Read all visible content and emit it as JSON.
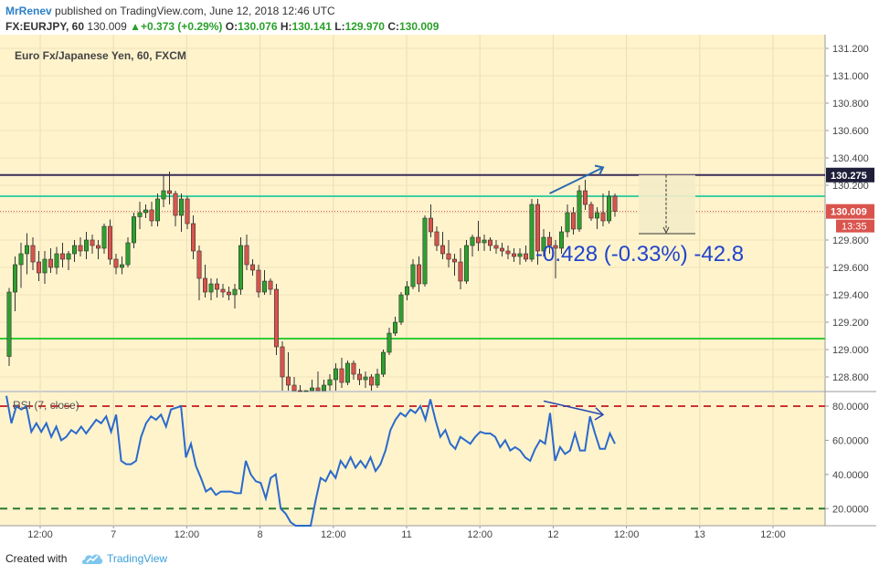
{
  "header": {
    "author": "MrRenev",
    "published_text": "published on TradingView.com, June 12, 2018 12:46 UTC",
    "symbol": "FX:EURJPY, 60",
    "last": "130.009",
    "change": "+0.373 (+0.29%)",
    "o_label": "O:",
    "o_value": "130.076",
    "h_label": "H:",
    "h_value": "130.141",
    "l_label": "L:",
    "l_value": "129.970",
    "c_label": "C:",
    "c_value": "130.009"
  },
  "footer": {
    "created_with": "Created with",
    "brand": "TradingView"
  },
  "colors": {
    "plot_bg": "#fff3cc",
    "bull": "#2ea02e",
    "bear": "#d9544d",
    "resistance": "#3b2d5a",
    "support_green": "#33cc33",
    "teal_line": "#3fcfa0",
    "rsi": "#2a6acc",
    "rsi_bands": "#cc3333",
    "rsi_low_band": "#2a7a2a",
    "measure_text": "#2244cc",
    "arrow": "#2a6ab0"
  },
  "chart_data": [
    {
      "type": "candlestick",
      "title": "Euro Fx/Japanese Yen, 60, FXCM",
      "ylim": [
        128.7,
        131.3
      ],
      "y_ticks": [
        "131.200",
        "131.000",
        "130.800",
        "130.600",
        "130.400",
        "130.200",
        "130.000",
        "129.800",
        "129.600",
        "129.400",
        "129.200",
        "129.000",
        "128.800"
      ],
      "x_ticks": [
        "12:00",
        "7",
        "12:00",
        "8",
        "12:00",
        "11",
        "12:00",
        "12",
        "12:00",
        "13",
        "12:00"
      ],
      "price_labels": {
        "resistance": "130.275",
        "last": "130.009",
        "countdown": "13:35"
      },
      "horizontal_levels": {
        "resistance": 130.275,
        "teal": 130.12,
        "support": 129.08,
        "last": 130.009
      },
      "measurement": {
        "text": "-0.428 (-0.33%) -42.8",
        "from": 130.275,
        "to": 129.847
      },
      "candles": [
        {
          "o": 128.95,
          "h": 129.45,
          "l": 128.88,
          "c": 129.42
        },
        {
          "o": 129.42,
          "h": 129.68,
          "l": 129.28,
          "c": 129.62
        },
        {
          "o": 129.62,
          "h": 129.78,
          "l": 129.45,
          "c": 129.7
        },
        {
          "o": 129.7,
          "h": 129.85,
          "l": 129.55,
          "c": 129.76
        },
        {
          "o": 129.76,
          "h": 129.82,
          "l": 129.58,
          "c": 129.64
        },
        {
          "o": 129.64,
          "h": 129.72,
          "l": 129.5,
          "c": 129.56
        },
        {
          "o": 129.56,
          "h": 129.72,
          "l": 129.48,
          "c": 129.66
        },
        {
          "o": 129.66,
          "h": 129.74,
          "l": 129.56,
          "c": 129.6
        },
        {
          "o": 129.6,
          "h": 129.75,
          "l": 129.55,
          "c": 129.7
        },
        {
          "o": 129.7,
          "h": 129.78,
          "l": 129.6,
          "c": 129.66
        },
        {
          "o": 129.66,
          "h": 129.72,
          "l": 129.58,
          "c": 129.7
        },
        {
          "o": 129.7,
          "h": 129.8,
          "l": 129.64,
          "c": 129.76
        },
        {
          "o": 129.76,
          "h": 129.82,
          "l": 129.68,
          "c": 129.72
        },
        {
          "o": 129.72,
          "h": 129.86,
          "l": 129.66,
          "c": 129.8
        },
        {
          "o": 129.8,
          "h": 129.84,
          "l": 129.7,
          "c": 129.76
        },
        {
          "o": 129.76,
          "h": 129.8,
          "l": 129.66,
          "c": 129.74
        },
        {
          "o": 129.74,
          "h": 129.92,
          "l": 129.7,
          "c": 129.9
        },
        {
          "o": 129.9,
          "h": 129.95,
          "l": 129.62,
          "c": 129.66
        },
        {
          "o": 129.66,
          "h": 129.7,
          "l": 129.55,
          "c": 129.6
        },
        {
          "o": 129.6,
          "h": 129.68,
          "l": 129.55,
          "c": 129.62
        },
        {
          "o": 129.62,
          "h": 129.82,
          "l": 129.6,
          "c": 129.78
        },
        {
          "o": 129.78,
          "h": 130.0,
          "l": 129.74,
          "c": 129.97
        },
        {
          "o": 129.97,
          "h": 130.08,
          "l": 129.88,
          "c": 130.0
        },
        {
          "o": 130.0,
          "h": 130.06,
          "l": 129.96,
          "c": 130.02
        },
        {
          "o": 130.02,
          "h": 130.08,
          "l": 129.9,
          "c": 129.94
        },
        {
          "o": 129.94,
          "h": 130.14,
          "l": 129.9,
          "c": 130.1
        },
        {
          "o": 130.1,
          "h": 130.28,
          "l": 130.04,
          "c": 130.16
        },
        {
          "o": 130.16,
          "h": 130.3,
          "l": 130.06,
          "c": 130.14
        },
        {
          "o": 130.14,
          "h": 130.16,
          "l": 129.9,
          "c": 129.98
        },
        {
          "o": 129.98,
          "h": 130.14,
          "l": 129.86,
          "c": 130.1
        },
        {
          "o": 130.1,
          "h": 130.12,
          "l": 129.88,
          "c": 129.92
        },
        {
          "o": 129.92,
          "h": 129.98,
          "l": 129.66,
          "c": 129.72
        },
        {
          "o": 129.72,
          "h": 129.76,
          "l": 129.36,
          "c": 129.52
        },
        {
          "o": 129.52,
          "h": 129.62,
          "l": 129.38,
          "c": 129.42
        },
        {
          "o": 129.42,
          "h": 129.52,
          "l": 129.36,
          "c": 129.48
        },
        {
          "o": 129.48,
          "h": 129.52,
          "l": 129.38,
          "c": 129.44
        },
        {
          "o": 129.44,
          "h": 129.48,
          "l": 129.38,
          "c": 129.42
        },
        {
          "o": 129.42,
          "h": 129.46,
          "l": 129.36,
          "c": 129.4
        },
        {
          "o": 129.4,
          "h": 129.48,
          "l": 129.3,
          "c": 129.44
        },
        {
          "o": 129.44,
          "h": 129.82,
          "l": 129.4,
          "c": 129.76
        },
        {
          "o": 129.76,
          "h": 129.84,
          "l": 129.58,
          "c": 129.62
        },
        {
          "o": 129.62,
          "h": 129.66,
          "l": 129.54,
          "c": 129.58
        },
        {
          "o": 129.58,
          "h": 129.62,
          "l": 129.38,
          "c": 129.42
        },
        {
          "o": 129.42,
          "h": 129.58,
          "l": 129.4,
          "c": 129.5
        },
        {
          "o": 129.5,
          "h": 129.52,
          "l": 129.4,
          "c": 129.44
        },
        {
          "o": 129.44,
          "h": 129.48,
          "l": 128.96,
          "c": 129.02
        },
        {
          "o": 129.02,
          "h": 129.06,
          "l": 128.7,
          "c": 128.8
        },
        {
          "o": 128.8,
          "h": 128.98,
          "l": 128.7,
          "c": 128.74
        },
        {
          "o": 128.74,
          "h": 128.8,
          "l": 128.6,
          "c": 128.7
        },
        {
          "o": 128.7,
          "h": 128.74,
          "l": 128.55,
          "c": 128.6
        },
        {
          "o": 128.6,
          "h": 128.7,
          "l": 128.5,
          "c": 128.66
        },
        {
          "o": 128.66,
          "h": 128.78,
          "l": 128.6,
          "c": 128.72
        },
        {
          "o": 128.72,
          "h": 128.84,
          "l": 128.6,
          "c": 128.66
        },
        {
          "o": 128.66,
          "h": 128.78,
          "l": 128.62,
          "c": 128.74
        },
        {
          "o": 128.74,
          "h": 128.82,
          "l": 128.66,
          "c": 128.78
        },
        {
          "o": 128.78,
          "h": 128.9,
          "l": 128.7,
          "c": 128.86
        },
        {
          "o": 128.86,
          "h": 128.94,
          "l": 128.72,
          "c": 128.76
        },
        {
          "o": 128.76,
          "h": 128.92,
          "l": 128.74,
          "c": 128.9
        },
        {
          "o": 128.9,
          "h": 128.92,
          "l": 128.78,
          "c": 128.82
        },
        {
          "o": 128.82,
          "h": 128.86,
          "l": 128.74,
          "c": 128.78
        },
        {
          "o": 128.78,
          "h": 128.84,
          "l": 128.72,
          "c": 128.8
        },
        {
          "o": 128.8,
          "h": 128.82,
          "l": 128.7,
          "c": 128.74
        },
        {
          "o": 128.74,
          "h": 128.86,
          "l": 128.72,
          "c": 128.82
        },
        {
          "o": 128.82,
          "h": 129.0,
          "l": 128.8,
          "c": 128.98
        },
        {
          "o": 128.98,
          "h": 129.16,
          "l": 128.96,
          "c": 129.12
        },
        {
          "o": 129.12,
          "h": 129.24,
          "l": 129.1,
          "c": 129.2
        },
        {
          "o": 129.2,
          "h": 129.42,
          "l": 129.18,
          "c": 129.4
        },
        {
          "o": 129.4,
          "h": 129.5,
          "l": 129.36,
          "c": 129.46
        },
        {
          "o": 129.46,
          "h": 129.66,
          "l": 129.44,
          "c": 129.62
        },
        {
          "o": 129.62,
          "h": 129.68,
          "l": 129.42,
          "c": 129.48
        },
        {
          "o": 129.48,
          "h": 129.98,
          "l": 129.46,
          "c": 129.96
        },
        {
          "o": 129.96,
          "h": 130.06,
          "l": 129.82,
          "c": 129.86
        },
        {
          "o": 129.86,
          "h": 129.9,
          "l": 129.72,
          "c": 129.76
        },
        {
          "o": 129.76,
          "h": 129.86,
          "l": 129.66,
          "c": 129.7
        },
        {
          "o": 129.7,
          "h": 129.8,
          "l": 129.6,
          "c": 129.66
        },
        {
          "o": 129.66,
          "h": 129.7,
          "l": 129.54,
          "c": 129.64
        },
        {
          "o": 129.64,
          "h": 129.74,
          "l": 129.44,
          "c": 129.5
        },
        {
          "o": 129.5,
          "h": 129.8,
          "l": 129.48,
          "c": 129.76
        },
        {
          "o": 129.76,
          "h": 129.84,
          "l": 129.68,
          "c": 129.82
        },
        {
          "o": 129.82,
          "h": 129.94,
          "l": 129.72,
          "c": 129.78
        },
        {
          "o": 129.78,
          "h": 129.84,
          "l": 129.72,
          "c": 129.8
        },
        {
          "o": 129.8,
          "h": 129.82,
          "l": 129.72,
          "c": 129.76
        },
        {
          "o": 129.76,
          "h": 129.8,
          "l": 129.7,
          "c": 129.74
        },
        {
          "o": 129.74,
          "h": 129.78,
          "l": 129.68,
          "c": 129.72
        },
        {
          "o": 129.72,
          "h": 129.76,
          "l": 129.66,
          "c": 129.7
        },
        {
          "o": 129.7,
          "h": 129.74,
          "l": 129.64,
          "c": 129.68
        },
        {
          "o": 129.68,
          "h": 129.74,
          "l": 129.62,
          "c": 129.7
        },
        {
          "o": 129.7,
          "h": 129.76,
          "l": 129.64,
          "c": 129.66
        },
        {
          "o": 129.66,
          "h": 130.1,
          "l": 129.64,
          "c": 130.06
        },
        {
          "o": 130.06,
          "h": 130.1,
          "l": 129.62,
          "c": 129.72
        },
        {
          "o": 129.72,
          "h": 129.88,
          "l": 129.68,
          "c": 129.82
        },
        {
          "o": 129.82,
          "h": 129.86,
          "l": 129.7,
          "c": 129.76
        },
        {
          "o": 129.76,
          "h": 129.8,
          "l": 129.52,
          "c": 129.74
        },
        {
          "o": 129.74,
          "h": 129.9,
          "l": 129.7,
          "c": 129.86
        },
        {
          "o": 129.86,
          "h": 130.06,
          "l": 129.82,
          "c": 130.0
        },
        {
          "o": 130.0,
          "h": 130.04,
          "l": 129.84,
          "c": 129.88
        },
        {
          "o": 129.88,
          "h": 130.2,
          "l": 129.86,
          "c": 130.16
        },
        {
          "o": 130.16,
          "h": 130.24,
          "l": 130.02,
          "c": 130.06
        },
        {
          "o": 130.06,
          "h": 130.08,
          "l": 129.94,
          "c": 129.96
        },
        {
          "o": 129.96,
          "h": 130.04,
          "l": 129.88,
          "c": 130.0
        },
        {
          "o": 130.0,
          "h": 130.14,
          "l": 129.9,
          "c": 129.94
        },
        {
          "o": 129.94,
          "h": 130.16,
          "l": 129.92,
          "c": 130.12
        },
        {
          "o": 130.12,
          "h": 130.14,
          "l": 129.97,
          "c": 130.01
        }
      ]
    },
    {
      "type": "line",
      "title": "RSI (7, close)",
      "ylim": [
        10,
        88
      ],
      "y_ticks": [
        "80.0000",
        "60.0000",
        "40.0000",
        "20.0000"
      ],
      "bands": [
        80,
        20
      ],
      "values": [
        86,
        70,
        80,
        78,
        80,
        65,
        70,
        65,
        70,
        62,
        68,
        60,
        62,
        66,
        64,
        68,
        64,
        68,
        72,
        70,
        74,
        65,
        75,
        48,
        46,
        46,
        48,
        62,
        70,
        74,
        72,
        75,
        68,
        78,
        79,
        80,
        50,
        58,
        45,
        38,
        30,
        32,
        28,
        30,
        30,
        30,
        29,
        29,
        48,
        40,
        36,
        35,
        26,
        38,
        40,
        20,
        17,
        12,
        10,
        9,
        10,
        8,
        25,
        38,
        36,
        42,
        38,
        48,
        44,
        50,
        44,
        48,
        44,
        50,
        42,
        46,
        54,
        66,
        72,
        76,
        74,
        78,
        76,
        80,
        72,
        84,
        72,
        62,
        66,
        58,
        55,
        62,
        60,
        58,
        62,
        65,
        64,
        64,
        62,
        56,
        60,
        54,
        56,
        54,
        50,
        48,
        55,
        60,
        58,
        76,
        48,
        56,
        52,
        54,
        64,
        54,
        54,
        74,
        64,
        55,
        55,
        64,
        58
      ]
    }
  ],
  "annotations": {
    "rsi_divergence": true,
    "price_trend_arrow": true
  }
}
